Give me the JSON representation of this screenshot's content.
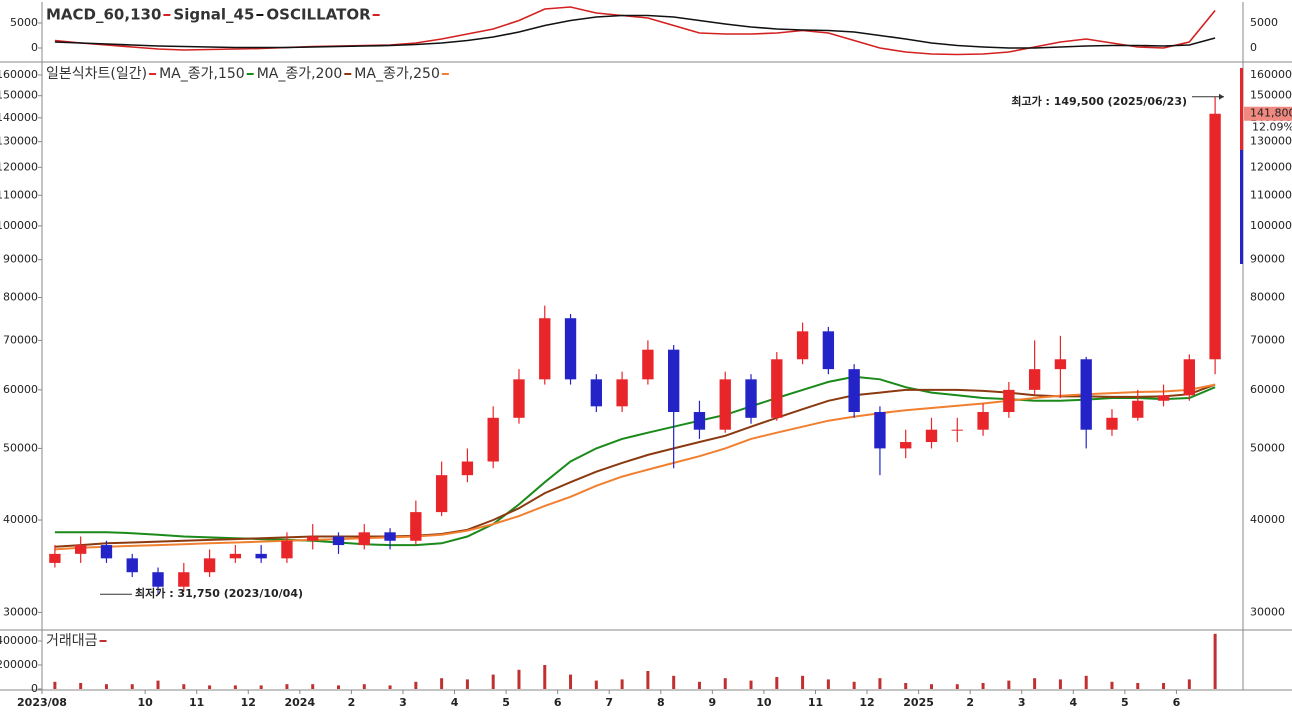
{
  "chart_data": [
    {
      "type": "line",
      "legend_extra": "OSCILLATOR",
      "legend_extra_color": "#d42020",
      "series": [
        {
          "name": "MACD_60,130",
          "color": "#d42020",
          "values": [
            1500,
            1000,
            600,
            200,
            -200,
            -400,
            -300,
            -200,
            -100,
            100,
            300,
            400,
            500,
            600,
            1000,
            1800,
            2800,
            3800,
            5500,
            7800,
            8200,
            7000,
            6500,
            6000,
            4500,
            3000,
            2800,
            2800,
            3000,
            3500,
            3000,
            1500,
            0,
            -800,
            -1200,
            -1300,
            -1200,
            -800,
            200,
            1200,
            1800,
            1000,
            200,
            0,
            1200,
            7500
          ]
        },
        {
          "name": "Signal_45",
          "color": "#111111",
          "values": [
            1200,
            1000,
            800,
            600,
            400,
            300,
            200,
            100,
            100,
            100,
            200,
            300,
            400,
            500,
            700,
            1000,
            1500,
            2200,
            3200,
            4500,
            5500,
            6200,
            6500,
            6500,
            6200,
            5500,
            4800,
            4200,
            3800,
            3600,
            3500,
            3200,
            2500,
            1800,
            1000,
            500,
            200,
            0,
            0,
            200,
            400,
            500,
            500,
            400,
            600,
            2000
          ]
        }
      ],
      "ylim": [
        -2400,
        8800
      ],
      "yticks": [
        0,
        5000
      ]
    },
    {
      "type": "candlestick",
      "name": "일본식차트(일간)",
      "up_color": "#e8262a",
      "down_color": "#2323c8",
      "log_scale": true,
      "open": [
        35000,
        36000,
        37000,
        35500,
        34000,
        32500,
        34000,
        35500,
        36000,
        35500,
        37500,
        38000,
        37000,
        38500,
        37500,
        41000,
        46000,
        48000,
        55000,
        62000,
        75000,
        62000,
        57000,
        62000,
        68000,
        56000,
        53000,
        62000,
        55000,
        66000,
        72000,
        64000,
        56000,
        50000,
        51000,
        53000,
        53000,
        56000,
        60000,
        64000,
        66000,
        53000,
        55000,
        58000,
        59000,
        66000
      ],
      "high": [
        37000,
        38000,
        37500,
        36000,
        34500,
        35000,
        36500,
        37000,
        37000,
        38500,
        39500,
        38500,
        39500,
        39000,
        42500,
        48000,
        50000,
        57000,
        64000,
        78000,
        76000,
        63000,
        63500,
        70000,
        69000,
        58000,
        63500,
        63000,
        67500,
        74000,
        73000,
        65000,
        57000,
        53000,
        55000,
        55000,
        57500,
        61500,
        70000,
        71000,
        66500,
        56500,
        60000,
        61000,
        67000,
        149500
      ],
      "low": [
        34500,
        35000,
        35000,
        33500,
        31750,
        32000,
        33500,
        35000,
        35000,
        35000,
        36500,
        36000,
        36500,
        36500,
        37000,
        40500,
        45000,
        47000,
        54000,
        61000,
        61000,
        56000,
        56000,
        61000,
        47000,
        51500,
        52500,
        54000,
        54500,
        65000,
        63000,
        55000,
        46000,
        48500,
        50000,
        51000,
        52000,
        55000,
        59000,
        58500,
        50000,
        52000,
        54500,
        57000,
        58000,
        63000
      ],
      "close": [
        36000,
        37000,
        35500,
        34000,
        32500,
        34000,
        35500,
        36000,
        35500,
        37500,
        38000,
        37000,
        38500,
        37500,
        41000,
        46000,
        48000,
        55000,
        62000,
        75000,
        62000,
        57000,
        62000,
        68000,
        56000,
        53000,
        62000,
        55000,
        66000,
        72000,
        64000,
        56000,
        50000,
        51000,
        53000,
        53000,
        56000,
        60000,
        64000,
        66000,
        53000,
        55000,
        58000,
        59000,
        66000,
        141800
      ],
      "series": [
        {
          "name": "MA_종가,150",
          "color": "#1a8a1a",
          "values": [
            38500,
            38500,
            38500,
            38400,
            38200,
            38000,
            37900,
            37800,
            37700,
            37600,
            37500,
            37300,
            37100,
            37000,
            37000,
            37200,
            38000,
            39500,
            42000,
            45000,
            48000,
            50000,
            51500,
            52500,
            53500,
            54500,
            55500,
            57000,
            58500,
            60000,
            61500,
            62500,
            62000,
            60500,
            59500,
            59000,
            58500,
            58300,
            58000,
            58000,
            58200,
            58500,
            58500,
            58300,
            58500,
            60500
          ]
        },
        {
          "name": "MA_종가,200",
          "color": "#8b3a10",
          "values": [
            36800,
            37000,
            37200,
            37300,
            37400,
            37500,
            37600,
            37700,
            37800,
            37900,
            38000,
            38000,
            38000,
            38000,
            38100,
            38300,
            38800,
            40000,
            41500,
            43500,
            45000,
            46500,
            47800,
            49000,
            50000,
            51000,
            52000,
            53500,
            55000,
            56500,
            58000,
            59000,
            59500,
            60000,
            60000,
            60000,
            59800,
            59500,
            59000,
            58800,
            58800,
            58700,
            58700,
            58800,
            59200,
            61000
          ]
        },
        {
          "name": "MA_종가,250",
          "color": "#f08030",
          "values": [
            36500,
            36700,
            36800,
            36900,
            37000,
            37100,
            37200,
            37300,
            37400,
            37500,
            37600,
            37700,
            37800,
            37900,
            38000,
            38200,
            38700,
            39500,
            40500,
            41800,
            43000,
            44500,
            45800,
            46800,
            47800,
            48800,
            50000,
            51500,
            52500,
            53500,
            54500,
            55200,
            55800,
            56300,
            56700,
            57100,
            57500,
            58000,
            58500,
            58900,
            59200,
            59400,
            59600,
            59700,
            60000,
            61000
          ]
        }
      ],
      "ylim": [
        28400,
        166600
      ],
      "yticks": [
        30000,
        40000,
        50000,
        60000,
        70000,
        80000,
        90000,
        100000,
        110000,
        120000,
        130000,
        140000,
        150000,
        160000
      ],
      "annotations": [
        {
          "text": "최고가 : 149,500 (2025/06/23)",
          "value": 149500,
          "color": "#e8262a"
        },
        {
          "text": "최저가 : 31,750 (2023/10/04)",
          "value": 31750,
          "color": "#2323c8"
        }
      ],
      "last_price": {
        "value": 141800,
        "label": "141,800"
      },
      "change_label": "12.09%"
    },
    {
      "type": "bar",
      "name": "거래대금",
      "color": "#c03030",
      "categories": [
        "2023/08",
        null,
        null,
        null,
        "10",
        null,
        "11",
        null,
        "12",
        null,
        "2024",
        null,
        "2",
        null,
        "3",
        null,
        "4",
        null,
        "5",
        null,
        "6",
        null,
        "7",
        null,
        "8",
        null,
        "9",
        null,
        "10",
        null,
        "11",
        null,
        "12",
        null,
        "2025",
        null,
        "2",
        null,
        "3",
        null,
        "4",
        null,
        "5",
        null,
        "6",
        null
      ],
      "values": [
        60000,
        50000,
        40000,
        40000,
        70000,
        40000,
        30000,
        30000,
        30000,
        40000,
        40000,
        30000,
        40000,
        30000,
        60000,
        90000,
        80000,
        120000,
        160000,
        200000,
        120000,
        70000,
        80000,
        150000,
        110000,
        60000,
        90000,
        70000,
        100000,
        110000,
        80000,
        60000,
        90000,
        50000,
        40000,
        40000,
        50000,
        70000,
        90000,
        80000,
        110000,
        60000,
        50000,
        50000,
        80000,
        460000
      ],
      "ylim": [
        0,
        466700
      ],
      "yticks": [
        0,
        200000,
        400000
      ]
    }
  ]
}
